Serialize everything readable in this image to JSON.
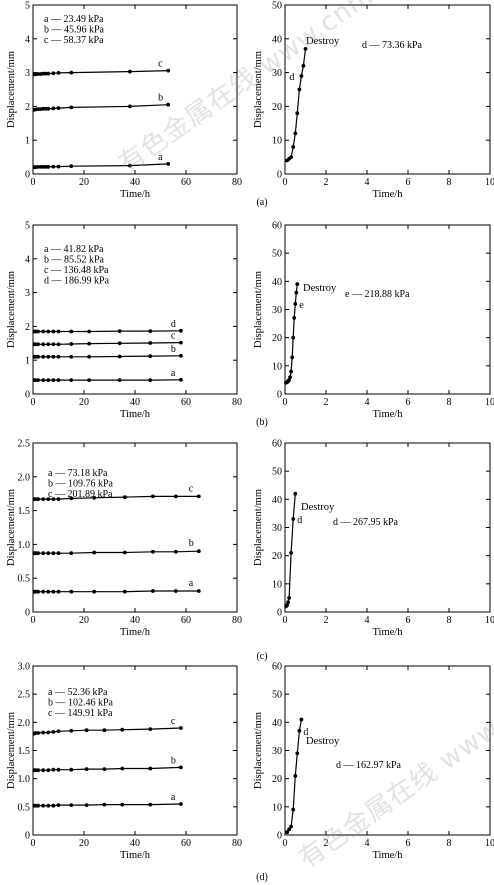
{
  "watermark": {
    "text": "有色金属在线 www.cnnmol.com"
  },
  "panels": [
    {
      "label": "(a)"
    },
    {
      "label": "(b)"
    },
    {
      "label": "(c)"
    },
    {
      "label": "(d)"
    }
  ],
  "chart_data": [
    {
      "id": "a-left",
      "type": "line",
      "xlabel": "Time/h",
      "ylabel": "Displacement/mm",
      "xlim": [
        0,
        80
      ],
      "ylim": [
        0,
        5
      ],
      "xticks": [
        0,
        20,
        40,
        60,
        80
      ],
      "yticks": [
        0,
        1,
        2,
        3,
        4,
        5
      ],
      "xtick_labels": [
        "0",
        "20",
        "40",
        "60",
        "80"
      ],
      "ytick_labels": [
        "0",
        "1",
        "2",
        "3",
        "4",
        "5"
      ],
      "legend": [
        "a — 23.49 kPa",
        "b — 45.96 kPa",
        "c — 58.37 kPa"
      ],
      "series": [
        {
          "name": "a",
          "x": [
            0.5,
            1,
            2,
            3,
            4,
            5,
            6,
            8,
            10,
            15,
            38,
            53
          ],
          "y": [
            0.2,
            0.2,
            0.21,
            0.21,
            0.21,
            0.21,
            0.21,
            0.22,
            0.22,
            0.23,
            0.25,
            0.3
          ]
        },
        {
          "name": "b",
          "x": [
            0.5,
            1,
            2,
            3,
            4,
            5,
            6,
            8,
            10,
            15,
            38,
            53
          ],
          "y": [
            1.9,
            1.91,
            1.92,
            1.92,
            1.93,
            1.93,
            1.93,
            1.94,
            1.95,
            1.97,
            2.0,
            2.05
          ]
        },
        {
          "name": "c",
          "x": [
            0.5,
            1,
            2,
            3,
            4,
            5,
            6,
            8,
            10,
            15,
            38,
            53
          ],
          "y": [
            2.95,
            2.95,
            2.96,
            2.96,
            2.97,
            2.97,
            2.97,
            2.98,
            2.99,
            3.0,
            3.03,
            3.06
          ]
        }
      ]
    },
    {
      "id": "a-right",
      "type": "line",
      "xlabel": "Time/h",
      "ylabel": "Displacement/mm",
      "xlim": [
        0,
        10
      ],
      "ylim": [
        0,
        50
      ],
      "xticks": [
        0,
        2,
        4,
        6,
        8,
        10
      ],
      "yticks": [
        0,
        10,
        20,
        30,
        40,
        50
      ],
      "xtick_labels": [
        "0",
        "2",
        "4",
        "6",
        "8",
        "10"
      ],
      "ytick_labels": [
        "0",
        "10",
        "20",
        "30",
        "40",
        "50"
      ],
      "legend": [
        "d — 73.36 kPa"
      ],
      "annotation": "Destroy",
      "series": [
        {
          "name": "d",
          "x": [
            0.1,
            0.2,
            0.3,
            0.4,
            0.5,
            0.6,
            0.7,
            0.8,
            0.9,
            1.0
          ],
          "y": [
            4,
            4.5,
            5,
            8,
            12,
            18,
            25,
            29,
            32,
            37
          ]
        }
      ]
    },
    {
      "id": "b-left",
      "type": "line",
      "xlabel": "Time/h",
      "ylabel": "Displacement/mm",
      "xlim": [
        0,
        80
      ],
      "ylim": [
        0,
        5
      ],
      "xticks": [
        0,
        20,
        40,
        60,
        80
      ],
      "yticks": [
        0,
        1,
        2,
        3,
        4,
        5
      ],
      "xtick_labels": [
        "0",
        "20",
        "40",
        "60",
        "80"
      ],
      "ytick_labels": [
        "0",
        "1",
        "2",
        "3",
        "4",
        "5"
      ],
      "legend": [
        "a — 41.82 kPa",
        "b — 85.52 kPa",
        "c — 136.48 kPa",
        "d — 186.99 kPa"
      ],
      "series": [
        {
          "name": "a",
          "x": [
            0.5,
            1,
            2,
            4,
            6,
            8,
            10,
            15,
            22,
            34,
            46,
            58
          ],
          "y": [
            0.41,
            0.41,
            0.41,
            0.41,
            0.41,
            0.41,
            0.41,
            0.41,
            0.41,
            0.41,
            0.41,
            0.42
          ]
        },
        {
          "name": "b",
          "x": [
            0.5,
            1,
            2,
            4,
            6,
            8,
            10,
            15,
            22,
            34,
            46,
            58
          ],
          "y": [
            1.1,
            1.1,
            1.1,
            1.1,
            1.1,
            1.1,
            1.1,
            1.1,
            1.1,
            1.11,
            1.12,
            1.13
          ]
        },
        {
          "name": "c",
          "x": [
            0.5,
            1,
            2,
            4,
            6,
            8,
            10,
            15,
            22,
            34,
            46,
            58
          ],
          "y": [
            1.47,
            1.47,
            1.47,
            1.47,
            1.47,
            1.47,
            1.47,
            1.48,
            1.49,
            1.5,
            1.51,
            1.52
          ]
        },
        {
          "name": "d",
          "x": [
            0.5,
            1,
            2,
            4,
            6,
            8,
            10,
            15,
            22,
            34,
            46,
            58
          ],
          "y": [
            1.85,
            1.85,
            1.85,
            1.85,
            1.85,
            1.85,
            1.85,
            1.85,
            1.85,
            1.86,
            1.86,
            1.87
          ]
        }
      ]
    },
    {
      "id": "b-right",
      "type": "line",
      "xlabel": "Time/h",
      "ylabel": "Displacement/mm",
      "xlim": [
        0,
        10
      ],
      "ylim": [
        0,
        60
      ],
      "xticks": [
        0,
        2,
        4,
        6,
        8,
        10
      ],
      "yticks": [
        0,
        10,
        20,
        30,
        40,
        50,
        60
      ],
      "xtick_labels": [
        "0",
        "2",
        "4",
        "6",
        "8",
        "10"
      ],
      "ytick_labels": [
        "0",
        "10",
        "20",
        "30",
        "40",
        "50",
        "60"
      ],
      "legend": [
        "e — 218.88 kPa"
      ],
      "annotation": "Destroy",
      "series": [
        {
          "name": "e",
          "x": [
            0.05,
            0.1,
            0.15,
            0.2,
            0.25,
            0.3,
            0.35,
            0.4,
            0.45,
            0.5,
            0.55,
            0.6
          ],
          "y": [
            4,
            4.2,
            4.5,
            5,
            6,
            8,
            13,
            20,
            27,
            32,
            36,
            39
          ]
        }
      ]
    },
    {
      "id": "c-left",
      "type": "line",
      "xlabel": "Time/h",
      "ylabel": "Displacement/mm",
      "xlim": [
        0,
        80
      ],
      "ylim": [
        0,
        2.5
      ],
      "xticks": [
        0,
        20,
        40,
        60,
        80
      ],
      "yticks": [
        0,
        0.5,
        1.0,
        1.5,
        2.0,
        2.5
      ],
      "xtick_labels": [
        "0",
        "20",
        "40",
        "60",
        "80"
      ],
      "ytick_labels": [
        "0",
        "0.5",
        "1.0",
        "1.5",
        "2.0",
        "2.5"
      ],
      "legend": [
        "a — 73.18 kPa",
        "b — 109.76 kPa",
        "c — 201.89 kPa"
      ],
      "series": [
        {
          "name": "a",
          "x": [
            0.5,
            1,
            2,
            4,
            6,
            8,
            10,
            15,
            24,
            36,
            47,
            56,
            65
          ],
          "y": [
            0.3,
            0.3,
            0.3,
            0.3,
            0.3,
            0.3,
            0.3,
            0.3,
            0.3,
            0.3,
            0.31,
            0.31,
            0.31
          ]
        },
        {
          "name": "b",
          "x": [
            0.5,
            1,
            2,
            4,
            6,
            8,
            10,
            15,
            24,
            36,
            47,
            56,
            65
          ],
          "y": [
            0.87,
            0.87,
            0.87,
            0.87,
            0.87,
            0.87,
            0.87,
            0.87,
            0.88,
            0.88,
            0.89,
            0.89,
            0.9
          ]
        },
        {
          "name": "c",
          "x": [
            0.5,
            1,
            2,
            4,
            6,
            8,
            10,
            15,
            24,
            36,
            47,
            56,
            65
          ],
          "y": [
            1.67,
            1.67,
            1.67,
            1.67,
            1.67,
            1.67,
            1.67,
            1.68,
            1.69,
            1.7,
            1.71,
            1.71,
            1.71
          ]
        }
      ]
    },
    {
      "id": "c-right",
      "type": "line",
      "xlabel": "Time/h",
      "ylabel": "Displacement/mm",
      "xlim": [
        0,
        10
      ],
      "ylim": [
        0,
        60
      ],
      "xticks": [
        0,
        2,
        4,
        6,
        8,
        10
      ],
      "yticks": [
        0,
        10,
        20,
        30,
        40,
        50,
        60
      ],
      "xtick_labels": [
        "0",
        "2",
        "4",
        "6",
        "8",
        "10"
      ],
      "ytick_labels": [
        "0",
        "10",
        "20",
        "30",
        "40",
        "50",
        "60"
      ],
      "legend": [
        "d — 267.95 kPa"
      ],
      "annotation": "Destroy",
      "series": [
        {
          "name": "d",
          "x": [
            0.05,
            0.1,
            0.15,
            0.2,
            0.3,
            0.4,
            0.5
          ],
          "y": [
            2,
            2.5,
            3.5,
            5,
            21,
            33,
            42
          ]
        }
      ]
    },
    {
      "id": "d-left",
      "type": "line",
      "xlabel": "Time/h",
      "ylabel": "Displacement/mm",
      "xlim": [
        0,
        80
      ],
      "ylim": [
        0,
        3.0
      ],
      "xticks": [
        0,
        20,
        40,
        60,
        80
      ],
      "yticks": [
        0,
        0.5,
        1.0,
        1.5,
        2.0,
        2.5,
        3.0
      ],
      "xtick_labels": [
        "0",
        "20",
        "40",
        "60",
        "80"
      ],
      "ytick_labels": [
        "0",
        "0.5",
        "1.0",
        "1.5",
        "2.0",
        "2.5",
        "3.0"
      ],
      "legend": [
        "a — 52.36 kPa",
        "b — 102.46 kPa",
        "c — 149.91 kPa"
      ],
      "series": [
        {
          "name": "a",
          "x": [
            0.5,
            1,
            2,
            4,
            6,
            8,
            10,
            15,
            21,
            28,
            35,
            46,
            58
          ],
          "y": [
            0.52,
            0.52,
            0.52,
            0.52,
            0.52,
            0.52,
            0.53,
            0.53,
            0.53,
            0.54,
            0.54,
            0.54,
            0.55
          ]
        },
        {
          "name": "b",
          "x": [
            0.5,
            1,
            2,
            4,
            6,
            8,
            10,
            15,
            21,
            28,
            35,
            46,
            58
          ],
          "y": [
            1.15,
            1.15,
            1.15,
            1.15,
            1.15,
            1.16,
            1.16,
            1.16,
            1.17,
            1.17,
            1.18,
            1.18,
            1.2
          ]
        },
        {
          "name": "c",
          "x": [
            0.5,
            1,
            2,
            4,
            6,
            8,
            10,
            15,
            21,
            28,
            35,
            46,
            58
          ],
          "y": [
            1.8,
            1.81,
            1.81,
            1.82,
            1.82,
            1.83,
            1.84,
            1.85,
            1.86,
            1.86,
            1.87,
            1.88,
            1.9
          ]
        }
      ]
    },
    {
      "id": "d-right",
      "type": "line",
      "xlabel": "Time/h",
      "ylabel": "Displacement/mm",
      "xlim": [
        0,
        10
      ],
      "ylim": [
        0,
        60
      ],
      "xticks": [
        0,
        2,
        4,
        6,
        8,
        10
      ],
      "yticks": [
        0,
        10,
        20,
        30,
        40,
        50,
        60
      ],
      "xtick_labels": [
        "0",
        "2",
        "4",
        "6",
        "8",
        "10"
      ],
      "ytick_labels": [
        "0",
        "10",
        "20",
        "30",
        "40",
        "50",
        "60"
      ],
      "legend": [
        "d — 162.97 kPa"
      ],
      "annotation": "Destroy",
      "series": [
        {
          "name": "d",
          "x": [
            0.1,
            0.2,
            0.3,
            0.4,
            0.5,
            0.6,
            0.7,
            0.8
          ],
          "y": [
            1,
            2,
            3,
            9,
            21,
            29,
            37,
            41
          ]
        }
      ]
    }
  ]
}
